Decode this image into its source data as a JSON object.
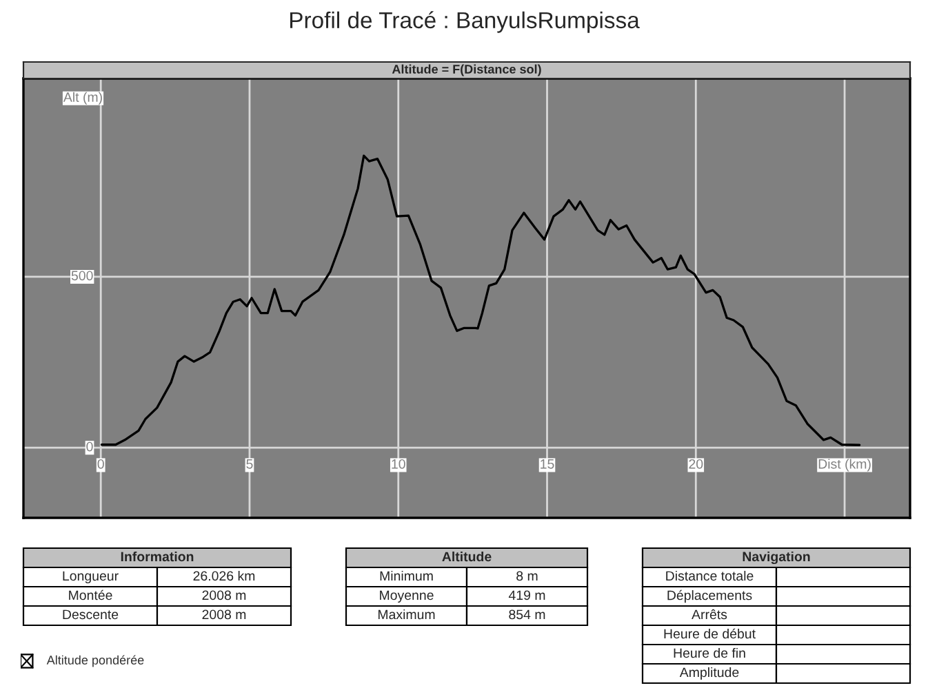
{
  "chart_data": [
    {
      "type": "line",
      "title": "Profil de Tracé : BanyulsRumpissa",
      "subtitle": "Altitude = F(Distance sol)",
      "xlabel": "Dist (km)",
      "ylabel": "Alt (m)",
      "x": [
        0.03,
        0.5,
        0.81,
        1.27,
        1.5,
        1.89,
        2.36,
        2.59,
        2.82,
        3.13,
        3.44,
        3.67,
        3.98,
        4.22,
        4.45,
        4.68,
        4.91,
        5.07,
        5.38,
        5.61,
        5.84,
        6.08,
        6.39,
        6.54,
        6.78,
        7.32,
        7.71,
        8.17,
        8.64,
        8.84,
        9.02,
        9.3,
        9.64,
        9.95,
        10.34,
        10.73,
        11.12,
        11.43,
        11.74,
        11.97,
        12.2,
        12.59,
        12.67,
        12.82,
        13.05,
        13.29,
        13.57,
        13.83,
        14.22,
        14.6,
        14.91,
        15.22,
        15.53,
        15.73,
        15.95,
        16.11,
        16.7,
        16.93,
        17.13,
        17.4,
        17.67,
        17.94,
        18.56,
        18.84,
        19.05,
        19.33,
        19.49,
        19.72,
        19.95,
        20.34,
        20.57,
        20.81,
        21.04,
        21.27,
        21.58,
        21.89,
        22.43,
        22.74,
        23.05,
        23.36,
        23.75,
        24.29,
        24.53,
        24.91,
        25.5
      ],
      "series": [
        {
          "color": "#000000",
          "values": [
            9,
            9,
            23,
            50,
            84,
            117,
            191,
            252,
            268,
            252,
            266,
            279,
            340,
            394,
            427,
            434,
            414,
            438,
            394,
            394,
            464,
            400,
            400,
            387,
            427,
            461,
            515,
            623,
            758,
            854,
            838,
            845,
            785,
            677,
            679,
            596,
            488,
            468,
            387,
            342,
            350,
            350,
            349,
            394,
            474,
            481,
            522,
            636,
            687,
            643,
            609,
            677,
            697,
            724,
            697,
            720,
            636,
            623,
            666,
            639,
            650,
            609,
            542,
            555,
            522,
            528,
            562,
            522,
            508,
            454,
            461,
            441,
            380,
            373,
            353,
            293,
            245,
            205,
            137,
            124,
            70,
            23,
            30,
            9,
            8
          ]
        }
      ],
      "xlim": [
        -2.6,
        27.2
      ],
      "ylim": [
        -205,
        1080
      ],
      "xticks": [
        0,
        5,
        10,
        15,
        20,
        {
          "value": 25,
          "label": null
        }
      ],
      "yticks": [
        0,
        500
      ],
      "grid": true,
      "marker": "none",
      "line_style": "solid"
    },
    {
      "type": "other",
      "title": "Information",
      "categories": [
        "Longueur",
        "Montée",
        "Descente"
      ],
      "value_labels": [
        "26.026 km",
        "2008 m",
        "2008 m"
      ]
    },
    {
      "type": "other",
      "title": "Altitude",
      "categories": [
        "Minimum",
        "Moyenne",
        "Maximum"
      ],
      "value_labels": [
        "8 m",
        "419 m",
        "854 m"
      ]
    },
    {
      "type": "other",
      "title": "Navigation",
      "categories": [
        "Distance totale",
        "Déplacements",
        "Arrêts",
        "Heure de début",
        "Heure de fin",
        "Amplitude"
      ]
    },
    {
      "type": "other",
      "annotations": [
        "Altitude pondérée"
      ]
    }
  ]
}
